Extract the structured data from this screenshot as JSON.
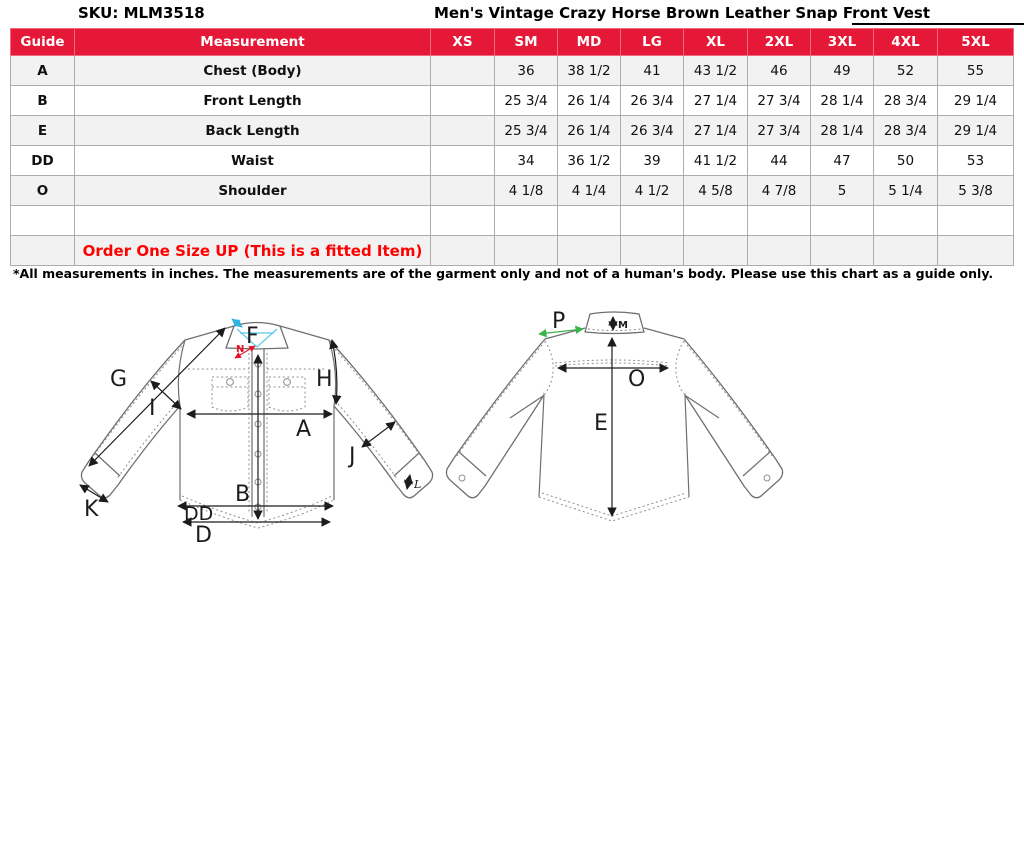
{
  "header": {
    "sku": "SKU: MLM3518",
    "title": "Men's Vintage Crazy Horse Brown Leather Snap Front Vest"
  },
  "size_table": {
    "columns": [
      "Guide",
      "Measurement",
      "XS",
      "SM",
      "MD",
      "LG",
      "XL",
      "2XL",
      "3XL",
      "4XL",
      "5XL"
    ],
    "rows": [
      {
        "guide": "A",
        "measurement": "Chest (Body)",
        "values": [
          "",
          "36",
          "38 1/2",
          "41",
          "43 1/2",
          "46",
          "49",
          "52",
          "55"
        ]
      },
      {
        "guide": "B",
        "measurement": "Front Length",
        "values": [
          "",
          "25 3/4",
          "26 1/4",
          "26 3/4",
          "27 1/4",
          "27 3/4",
          "28 1/4",
          "28 3/4",
          "29 1/4"
        ]
      },
      {
        "guide": "E",
        "measurement": "Back Length",
        "values": [
          "",
          "25 3/4",
          "26 1/4",
          "26 3/4",
          "27 1/4",
          "27 3/4",
          "28 1/4",
          "28 3/4",
          "29 1/4"
        ]
      },
      {
        "guide": "DD",
        "measurement": "Waist",
        "values": [
          "",
          "34",
          "36 1/2",
          "39",
          "41 1/2",
          "44",
          "47",
          "50",
          "53"
        ]
      },
      {
        "guide": "O",
        "measurement": "Shoulder",
        "values": [
          "",
          "4 1/8",
          "4 1/4",
          "4 1/2",
          "4 5/8",
          "4 7/8",
          "5",
          "5 1/4",
          "5 3/8"
        ]
      },
      {
        "guide": "",
        "measurement": "",
        "values": [
          "",
          "",
          "",
          "",
          "",
          "",
          "",
          "",
          ""
        ],
        "type": "empty"
      },
      {
        "guide": "",
        "measurement": "Order One Size UP (This is a fitted Item)",
        "values": [
          "",
          "",
          "",
          "",
          "",
          "",
          "",
          "",
          ""
        ],
        "type": "note"
      }
    ]
  },
  "footnote": "*All measurements in inches. The measurements are of the garment only and not of a human's body. Please use this chart as a guide only.",
  "diagrams": {
    "front": {
      "labels": {
        "F": "F",
        "N": "N",
        "G": "G",
        "I": "I",
        "H": "H",
        "A": "A",
        "B": "B",
        "J": "J",
        "K": "K",
        "L": "L",
        "DD": "DD",
        "D": "D"
      }
    },
    "back": {
      "labels": {
        "P": "P",
        "M": "M",
        "O": "O",
        "E": "E"
      }
    }
  },
  "colors": {
    "table_header_bg": "#e51937",
    "table_header_text": "#ffffff",
    "note_text": "#ff0000",
    "row_stripe": "#f2f2f2",
    "grid_border": "#adadad",
    "label_cyan": "#2fb3e3",
    "label_red": "#e81123",
    "label_green": "#3ab549",
    "diagram_line": "#6f6f6f"
  }
}
